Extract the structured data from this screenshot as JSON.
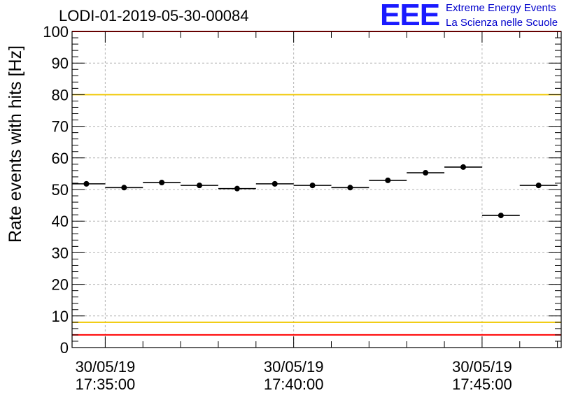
{
  "header": {
    "run_title": "LODI-01-2019-05-30-00084",
    "logo_text": "EEE",
    "logo_line1": "Extreme Energy Events",
    "logo_line2": "La Scienza nelle Scuole",
    "logo_color": "#1a1aff"
  },
  "chart_data": {
    "type": "scatter",
    "title": "LODI-01-2019-05-30-00084",
    "ylabel": "Rate events with hits [Hz]",
    "xlabel": "",
    "ylim": [
      0,
      100
    ],
    "xlim": [
      -0.88,
      12.1
    ],
    "y_ticks": [
      "0",
      "10",
      "20",
      "30",
      "40",
      "50",
      "60",
      "70",
      "80",
      "90",
      "100"
    ],
    "x_ticks": [
      {
        "value": 0,
        "date": "30/05/19",
        "time": "17:35:00"
      },
      {
        "value": 5,
        "date": "30/05/19",
        "time": "17:40:00"
      },
      {
        "value": 10,
        "date": "30/05/19",
        "time": "17:45:00"
      }
    ],
    "x_unit": "minutes after 17:35:00",
    "grid": true,
    "series": [
      {
        "x": [
          -0.5,
          0.5,
          1.5,
          2.5,
          3.5,
          4.5,
          5.5,
          6.5,
          7.5,
          8.5,
          9.5,
          10.5,
          11.5
        ],
        "y": [
          51.8,
          50.6,
          52.2,
          51.3,
          50.3,
          51.8,
          51.3,
          50.6,
          52.9,
          55.3,
          57.1,
          41.8,
          51.3
        ],
        "xerr": 0.5
      }
    ],
    "reference_lines": [
      {
        "y": 100,
        "color": "#ff0000"
      },
      {
        "y": 80,
        "color": "#f0c800"
      },
      {
        "y": 8,
        "color": "#f0c800"
      },
      {
        "y": 4,
        "color": "#ff0000"
      }
    ]
  }
}
